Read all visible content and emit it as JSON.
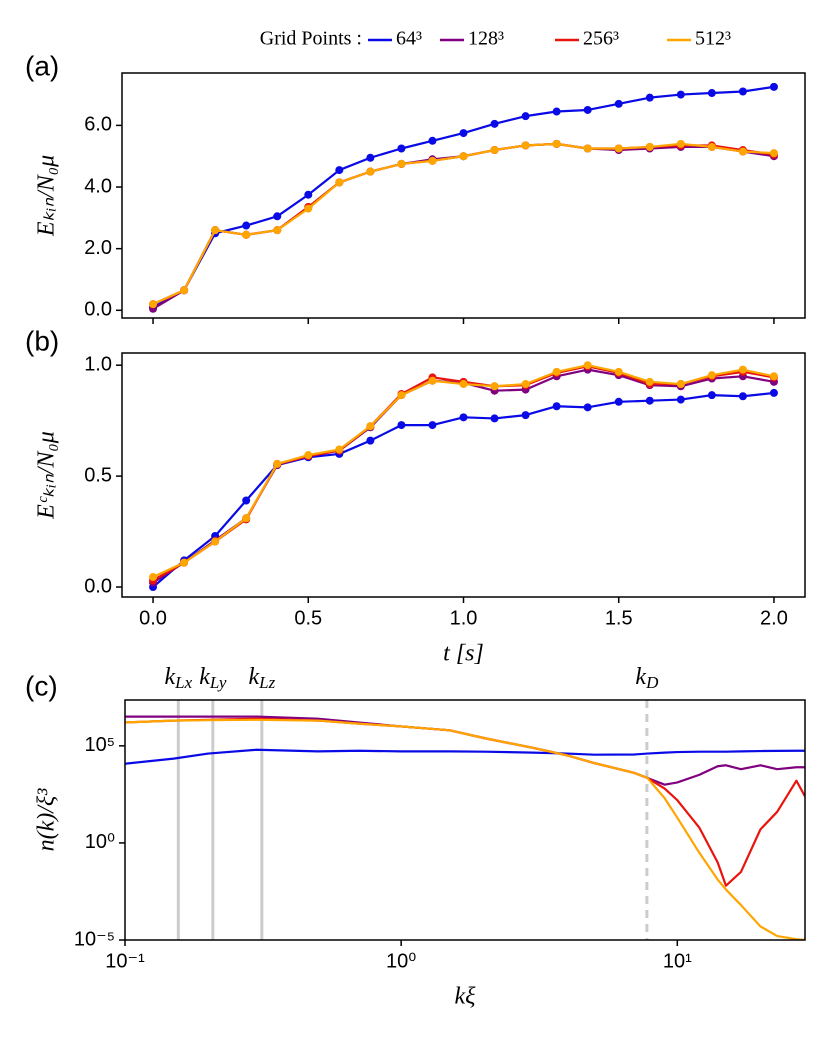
{
  "chart_data": [
    {
      "type": "line",
      "panel_label": "(a)",
      "legend_title": "Grid Points :",
      "ylabel": "Eₖᵢₙ/N₀μ",
      "markers": true,
      "x": [
        0,
        0.1,
        0.2,
        0.3,
        0.4,
        0.5,
        0.6,
        0.7,
        0.8,
        0.9,
        1.0,
        1.1,
        1.2,
        1.3,
        1.4,
        1.5,
        1.6,
        1.7,
        1.8,
        1.9,
        2.0
      ],
      "xlim": [
        -0.1,
        2.1
      ],
      "xticks": [
        0,
        0.5,
        1,
        1.5,
        2
      ],
      "ylim": [
        -0.25,
        7.7
      ],
      "yticks": [
        {
          "value": 0,
          "label": "0.0"
        },
        {
          "value": 2,
          "label": "2.0"
        },
        {
          "value": 4,
          "label": "4.0"
        },
        {
          "value": 6,
          "label": "6.0"
        }
      ],
      "series": [
        {
          "name": "64³",
          "color": "#0a0ae6",
          "values": [
            0.1,
            0.65,
            2.5,
            2.75,
            3.05,
            3.75,
            4.55,
            4.95,
            5.25,
            5.5,
            5.75,
            6.05,
            6.3,
            6.45,
            6.5,
            6.7,
            6.9,
            7.0,
            7.05,
            7.1,
            7.25
          ]
        },
        {
          "name": "128³",
          "color": "#800080",
          "values": [
            0.05,
            0.65,
            2.6,
            2.45,
            2.6,
            3.35,
            4.15,
            4.5,
            4.75,
            4.9,
            5.0,
            5.2,
            5.35,
            5.4,
            5.25,
            5.2,
            5.25,
            5.3,
            5.3,
            5.15,
            5.0
          ]
        },
        {
          "name": "256³",
          "color": "#e8140f",
          "values": [
            0.2,
            0.65,
            2.6,
            2.45,
            2.6,
            3.35,
            4.15,
            4.5,
            4.75,
            4.85,
            5.0,
            5.2,
            5.35,
            5.4,
            5.25,
            5.25,
            5.3,
            5.35,
            5.35,
            5.2,
            5.05
          ]
        },
        {
          "name": "512³",
          "color": "#ffa500",
          "values": [
            0.2,
            0.65,
            2.6,
            2.45,
            2.6,
            3.3,
            4.15,
            4.5,
            4.75,
            4.85,
            5.0,
            5.2,
            5.35,
            5.4,
            5.25,
            5.25,
            5.3,
            5.4,
            5.3,
            5.15,
            5.1
          ]
        }
      ]
    },
    {
      "type": "line",
      "panel_label": "(b)",
      "ylabel": "Eᶜₖᵢₙ/N₀μ",
      "xlabel": "t [s]",
      "markers": true,
      "x": [
        0,
        0.1,
        0.2,
        0.3,
        0.4,
        0.5,
        0.6,
        0.7,
        0.8,
        0.9,
        1.0,
        1.1,
        1.2,
        1.3,
        1.4,
        1.5,
        1.6,
        1.7,
        1.8,
        1.9,
        2.0
      ],
      "xlim": [
        -0.1,
        2.1
      ],
      "xticks": [
        {
          "value": 0,
          "label": "0.0"
        },
        {
          "value": 0.5,
          "label": "0.5"
        },
        {
          "value": 1,
          "label": "1.0"
        },
        {
          "value": 1.5,
          "label": "1.5"
        },
        {
          "value": 2,
          "label": "2.0"
        }
      ],
      "ylim": [
        -0.045,
        1.055
      ],
      "yticks": [
        {
          "value": 0,
          "label": "0.0"
        },
        0.5,
        {
          "value": 1,
          "label": "1.0"
        }
      ],
      "series": [
        {
          "color": "#0a0ae6",
          "values": [
            0.0,
            0.12,
            0.23,
            0.39,
            0.55,
            0.585,
            0.6,
            0.66,
            0.73,
            0.73,
            0.765,
            0.76,
            0.775,
            0.815,
            0.81,
            0.835,
            0.84,
            0.845,
            0.865,
            0.86,
            0.875
          ]
        },
        {
          "color": "#800080",
          "values": [
            0.02,
            0.11,
            0.21,
            0.31,
            0.55,
            0.59,
            0.615,
            0.72,
            0.865,
            0.93,
            0.92,
            0.885,
            0.89,
            0.95,
            0.98,
            0.955,
            0.91,
            0.905,
            0.94,
            0.95,
            0.925
          ]
        },
        {
          "color": "#e8140f",
          "values": [
            0.03,
            0.11,
            0.205,
            0.305,
            0.555,
            0.59,
            0.615,
            0.725,
            0.87,
            0.945,
            0.925,
            0.905,
            0.91,
            0.965,
            0.995,
            0.965,
            0.915,
            0.915,
            0.95,
            0.97,
            0.945
          ]
        },
        {
          "color": "#ffa500",
          "values": [
            0.045,
            0.11,
            0.205,
            0.31,
            0.555,
            0.595,
            0.62,
            0.725,
            0.865,
            0.93,
            0.915,
            0.905,
            0.915,
            0.97,
            1.0,
            0.97,
            0.925,
            0.915,
            0.955,
            0.98,
            0.95
          ]
        }
      ]
    },
    {
      "type": "line",
      "panel_label": "(c)",
      "ylabel": "n(k)/ξ³",
      "xlabel": "kξ",
      "markers": false,
      "xscale": "log",
      "yscale": "log",
      "x": [
        0.1,
        0.15,
        0.2,
        0.3,
        0.5,
        0.7,
        1,
        1.5,
        2,
        3,
        4,
        5,
        7,
        7.8,
        9,
        10,
        12,
        14,
        15,
        17,
        20,
        23,
        27,
        29
      ],
      "xlim": [
        0.1,
        29
      ],
      "xticks": [
        {
          "value": 0.1,
          "label": "10⁻¹"
        },
        {
          "value": 1,
          "label": "10⁰"
        },
        {
          "value": 10,
          "label": "10¹"
        }
      ],
      "ylim": [
        1e-05,
        23000000
      ],
      "yticks": [
        {
          "value": 1e-05,
          "label": "10⁻⁵"
        },
        {
          "value": 1,
          "label": "10⁰"
        },
        {
          "value": 100000,
          "label": "10⁵"
        }
      ],
      "annotations": [
        {
          "symbol": "k",
          "subscript": "Lx",
          "x": 0.156,
          "color": "#cccccc",
          "linestyle": "solid"
        },
        {
          "symbol": "k",
          "subscript": "Ly",
          "x": 0.208,
          "color": "#cccccc",
          "linestyle": "solid"
        },
        {
          "symbol": "k",
          "subscript": "Lz",
          "x": 0.313,
          "color": "#cccccc",
          "linestyle": "solid"
        },
        {
          "symbol": "k",
          "subscript": "D",
          "x": 7.76,
          "color": "#cccccc",
          "linestyle": "dashed"
        }
      ],
      "series": [
        {
          "color": "#0a0ae6",
          "values": [
            12000,
            22000,
            40000,
            63000,
            52000,
            56000,
            52000,
            52000,
            50000,
            45000,
            40000,
            35000,
            36000,
            40000,
            45000,
            48000,
            50000,
            50000,
            50000,
            52000,
            54000,
            55000,
            56000,
            56000
          ]
        },
        {
          "color": "#800080",
          "values": [
            3200000,
            3200000,
            3200000,
            3200000,
            2500000,
            1600000,
            1000000,
            630000,
            250000,
            79000,
            32000,
            13000,
            4000,
            2200,
            1000,
            1300,
            3200,
            8900,
            10000,
            6300,
            10000,
            6300,
            7900,
            7900
          ]
        },
        {
          "color": "#e8140f",
          "values": [
            1600000,
            2000000,
            2200000,
            2500000,
            2000000,
            1400000,
            1000000,
            630000,
            250000,
            79000,
            32000,
            13000,
            4000,
            2200,
            630,
            160,
            6.3,
            0.1,
            0.0063,
            0.032,
            5,
            40,
            1600,
            250
          ]
        },
        {
          "color": "#ffa500",
          "values": [
            1600000,
            2000000,
            2100000,
            2200000,
            2000000,
            1400000,
            1000000,
            630000,
            250000,
            79000,
            32000,
            13000,
            4000,
            2200,
            200,
            20,
            0.32,
            0.013,
            0.004,
            0.00063,
            5e-05,
            1.6e-05,
            1.1e-05,
            1e-05
          ]
        }
      ]
    }
  ]
}
